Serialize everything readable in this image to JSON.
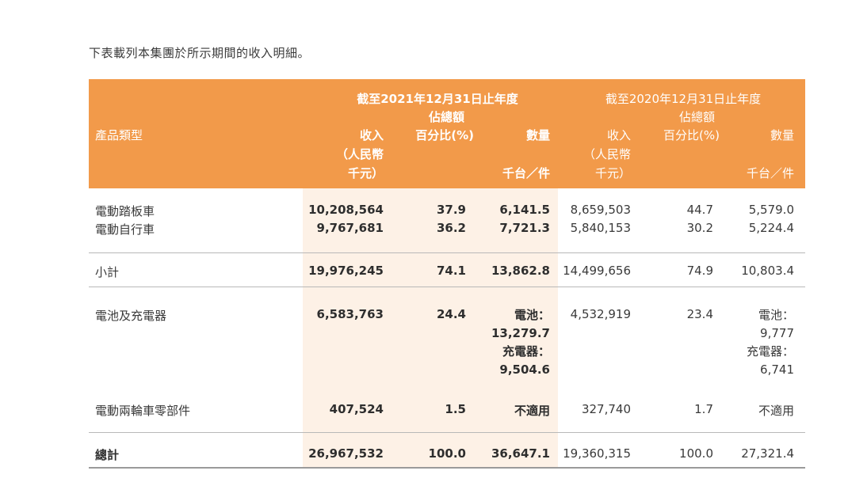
{
  "intro": "下表載列本集團於所示期間的收入明細。",
  "header": {
    "product_type": "產品類型",
    "period_2021": "截至2021年12月31日止年度",
    "period_2020": "截至2020年12月31日止年度",
    "revenue_l1": "收入",
    "revenue_l2": "（人民幣",
    "revenue_l3": "千元）",
    "share_l1": "佔總額",
    "share_l2": "百分比(%)",
    "qty_l1": "數量",
    "qty_l2": "千台／件"
  },
  "rows": {
    "scooter": {
      "label": "電動踏板車",
      "rev21": "10,208,564",
      "pct21": "37.9",
      "qty21": "6,141.5",
      "rev20": "8,659,503",
      "pct20": "44.7",
      "qty20": "5,579.0"
    },
    "bicycle": {
      "label": "電動自行車",
      "rev21": "9,767,681",
      "pct21": "36.2",
      "qty21": "7,721.3",
      "rev20": "5,840,153",
      "pct20": "30.2",
      "qty20": "5,224.4"
    },
    "subtotal": {
      "label": "小計",
      "rev21": "19,976,245",
      "pct21": "74.1",
      "qty21": "13,862.8",
      "rev20": "14,499,656",
      "pct20": "74.9",
      "qty20": "10,803.4"
    },
    "battery": {
      "label": "電池及充電器",
      "rev21": "6,583,763",
      "pct21": "24.4",
      "qty21_a_label": "電池：",
      "qty21_a": "13,279.7",
      "qty21_b_label": "充電器：",
      "qty21_b": "9,504.6",
      "rev20": "4,532,919",
      "pct20": "23.4",
      "qty20_a_label": "電池：",
      "qty20_a": "9,777",
      "qty20_b_label": "充電器：",
      "qty20_b": "6,741"
    },
    "parts": {
      "label": "電動兩輪車零部件",
      "rev21": "407,524",
      "pct21": "1.5",
      "qty21": "不適用",
      "rev20": "327,740",
      "pct20": "1.7",
      "qty20": "不適用"
    },
    "total": {
      "label": "總計",
      "rev21": "26,967,532",
      "pct21": "100.0",
      "qty21": "36,647.1",
      "rev20": "19,360,315",
      "pct20": "100.0",
      "qty20": "27,321.4"
    }
  },
  "colors": {
    "header_bg": "#f29a4a",
    "shade_bg": "#fdf1e6"
  }
}
